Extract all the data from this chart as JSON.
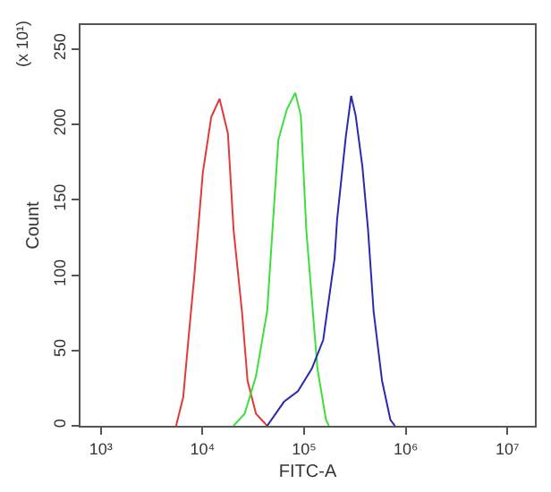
{
  "chart_data": {
    "type": "line",
    "xlabel": "FITC-A",
    "ylabel": "Count",
    "annotations": [
      "(x 10¹)"
    ],
    "xlim": [
      631,
      18600000
    ],
    "ylim": [
      0,
      266
    ],
    "xticks": [
      {
        "value": 1000,
        "label": "10³"
      },
      {
        "value": 10000,
        "label": "10⁴"
      },
      {
        "value": 100000,
        "label": "10⁵"
      },
      {
        "value": 1000000,
        "label": "10⁶"
      },
      {
        "value": 10000000,
        "label": "10⁷"
      }
    ],
    "yticks": [
      0,
      50,
      100,
      150,
      200,
      250
    ],
    "log": "x",
    "grid": false,
    "marker": "none",
    "line_style": "solid",
    "series": [
      {
        "color": "#e03a3a",
        "x": [
          5500,
          6460,
          7330,
          8320,
          10070,
          12190,
          14720,
          17780,
          20230,
          24430,
          27730,
          33570,
          43250
        ],
        "values": [
          0,
          19,
          60,
          100,
          168,
          205,
          217,
          194,
          130,
          76,
          30,
          8,
          0
        ]
      },
      {
        "color": "#3ce03c",
        "x": [
          20200,
          26000,
          33570,
          43250,
          49100,
          55800,
          67600,
          81700,
          92700,
          105000,
          119000,
          135000,
          164000,
          175000
        ],
        "values": [
          0,
          8,
          33,
          76,
          133,
          190,
          210,
          221,
          206,
          130,
          84,
          38,
          4,
          0
        ]
      },
      {
        "color": "#2a2ab0",
        "x": [
          43250,
          63400,
          86900,
          119000,
          154000,
          199000,
          211000,
          256000,
          290000,
          321000,
          374000,
          425000,
          482000,
          583000,
          705000,
          781000
        ],
        "values": [
          0,
          16,
          23,
          38,
          57,
          111,
          137,
          191,
          219,
          206,
          172,
          130,
          76,
          30,
          4,
          0
        ]
      }
    ]
  }
}
